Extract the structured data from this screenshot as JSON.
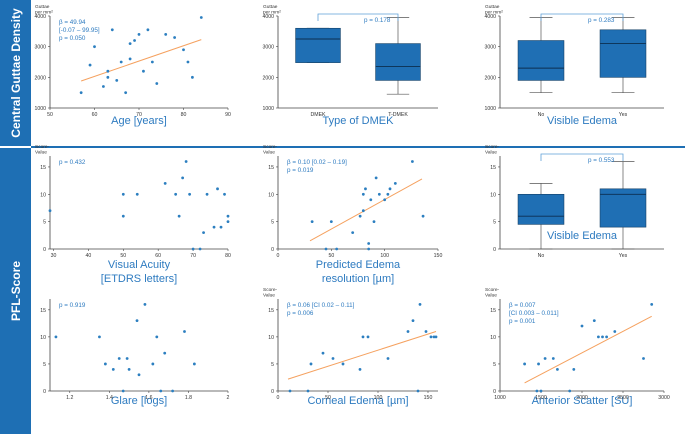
{
  "figure": {
    "row_labels": [
      "Central Guttae Density",
      "PFL-Score"
    ],
    "colors": {
      "accent": "#1e6fb4",
      "points": "#2c7fc0",
      "fit": "#f5a15f",
      "box": "#1f6fb4",
      "axis": "#444444",
      "label": "#2e7bc0"
    }
  },
  "chart_data": [
    {
      "id": "age",
      "type": "scatter",
      "ylabel": "Guttae\nper mm²",
      "xlabel": "Age [years]",
      "xlim": [
        50,
        90
      ],
      "ylim": [
        1000,
        4000
      ],
      "xticks": [
        50,
        60,
        70,
        80,
        90
      ],
      "yticks": [
        1000,
        2000,
        3000,
        4000
      ],
      "annotation": [
        "β = 49.94",
        "[-0.07 – 99.95]",
        "p = 0.050"
      ],
      "points": [
        [
          57,
          1500
        ],
        [
          59,
          2400
        ],
        [
          60,
          3000
        ],
        [
          62,
          1700
        ],
        [
          63,
          2000
        ],
        [
          63,
          2200
        ],
        [
          64,
          3550
        ],
        [
          65,
          1900
        ],
        [
          66,
          2500
        ],
        [
          67,
          1500
        ],
        [
          68,
          3100
        ],
        [
          68,
          2600
        ],
        [
          69,
          3200
        ],
        [
          70,
          3400
        ],
        [
          71,
          2200
        ],
        [
          72,
          3550
        ],
        [
          73,
          2500
        ],
        [
          74,
          1800
        ],
        [
          76,
          3400
        ],
        [
          78,
          3300
        ],
        [
          80,
          2900
        ],
        [
          81,
          2500
        ],
        [
          82,
          2000
        ],
        [
          84,
          3950
        ]
      ],
      "fit": [
        [
          57,
          1880
        ],
        [
          84,
          3230
        ]
      ]
    },
    {
      "id": "dmek",
      "type": "box",
      "ylabel": "Guttae\nper mm²",
      "xlabel": "Type of DMEK",
      "ylim": [
        1000,
        4000
      ],
      "yticks": [
        1000,
        2000,
        3000,
        4000
      ],
      "categories": [
        "DMEK",
        "T-DMEK"
      ],
      "boxes": [
        {
          "min": 2480,
          "q1": 2480,
          "median": 3250,
          "q3": 3600,
          "max": 3600
        },
        {
          "min": 1450,
          "q1": 1900,
          "median": 2350,
          "q3": 3100,
          "max": 3950
        }
      ],
      "p_text": "p = 0.178"
    },
    {
      "id": "edema_gd",
      "type": "box",
      "ylabel": "Guttae\nper mm²",
      "xlabel": "Visible Edema",
      "ylim": [
        1000,
        4000
      ],
      "yticks": [
        1000,
        2000,
        3000,
        4000
      ],
      "categories": [
        "No",
        "Yes"
      ],
      "boxes": [
        {
          "min": 1500,
          "q1": 1900,
          "median": 2300,
          "q3": 3200,
          "max": 3950
        },
        {
          "min": 1500,
          "q1": 2000,
          "median": 3100,
          "q3": 3550,
          "max": 3950
        }
      ],
      "p_text": "p = 0.283"
    },
    {
      "id": "va",
      "type": "scatter",
      "ylabel": "Score-\nValue",
      "xlabel": "Visual Acuity\n[ETDRS letters]",
      "xlim": [
        29,
        80
      ],
      "ylim": [
        0,
        17
      ],
      "xticks": [
        30,
        40,
        50,
        60,
        70,
        80
      ],
      "yticks": [
        0,
        5,
        10,
        15
      ],
      "annotation": [
        "p = 0.432"
      ],
      "points": [
        [
          29,
          7
        ],
        [
          50,
          6
        ],
        [
          50,
          10
        ],
        [
          54,
          10
        ],
        [
          62,
          12
        ],
        [
          65,
          10
        ],
        [
          66,
          6
        ],
        [
          67,
          13
        ],
        [
          68,
          16
        ],
        [
          69,
          10
        ],
        [
          70,
          0
        ],
        [
          72,
          0
        ],
        [
          73,
          3
        ],
        [
          74,
          10
        ],
        [
          76,
          4
        ],
        [
          77,
          11
        ],
        [
          78,
          4
        ],
        [
          79,
          10
        ],
        [
          80,
          6
        ],
        [
          80,
          5
        ]
      ],
      "fit": null
    },
    {
      "id": "edema_res",
      "type": "scatter",
      "ylabel": "Score-\nValue",
      "xlabel": "Predicted Edema\nresolution [µm]",
      "xlim": [
        0,
        150
      ],
      "ylim": [
        0,
        17
      ],
      "xticks": [
        0,
        50,
        100,
        150
      ],
      "yticks": [
        0,
        5,
        10,
        15
      ],
      "annotation": [
        "β = 0.10 [0.02 – 0.19]",
        "p = 0.019"
      ],
      "points": [
        [
          32,
          5
        ],
        [
          45,
          0
        ],
        [
          50,
          5
        ],
        [
          55,
          0
        ],
        [
          70,
          3
        ],
        [
          77,
          6
        ],
        [
          80,
          7
        ],
        [
          80,
          10
        ],
        [
          82,
          11
        ],
        [
          85,
          1
        ],
        [
          85,
          0
        ],
        [
          87,
          9
        ],
        [
          90,
          5
        ],
        [
          92,
          13
        ],
        [
          95,
          10
        ],
        [
          100,
          9
        ],
        [
          103,
          10
        ],
        [
          105,
          11
        ],
        [
          110,
          12
        ],
        [
          126,
          16
        ],
        [
          136,
          6
        ]
      ],
      "fit": [
        [
          30,
          1.5
        ],
        [
          135,
          12.8
        ]
      ]
    },
    {
      "id": "edema_pfl",
      "type": "box",
      "ylabel": "Score-\nValue",
      "xlabel": "Visible Edema",
      "ylim": [
        0,
        17
      ],
      "yticks": [
        0,
        5,
        10,
        15
      ],
      "categories": [
        "No",
        "Yes"
      ],
      "boxes": [
        {
          "min": 0,
          "q1": 4.5,
          "median": 6,
          "q3": 10,
          "max": 12
        },
        {
          "min": 0,
          "q1": 4,
          "median": 10,
          "q3": 11,
          "max": 16
        }
      ],
      "p_text": "p = 0.553"
    },
    {
      "id": "glare",
      "type": "scatter",
      "ylabel": "",
      "xlabel": "Glare [logs]",
      "xlim": [
        1.1,
        2.0
      ],
      "ylim": [
        0,
        17
      ],
      "xticks": [
        1.2,
        1.4,
        1.6,
        1.8,
        2.0
      ],
      "yticks": [
        0,
        5,
        10,
        15
      ],
      "annotation": [
        "p = 0.919"
      ],
      "points": [
        [
          1.13,
          10
        ],
        [
          1.35,
          10
        ],
        [
          1.38,
          5
        ],
        [
          1.42,
          4
        ],
        [
          1.45,
          6
        ],
        [
          1.47,
          0
        ],
        [
          1.49,
          6
        ],
        [
          1.5,
          4
        ],
        [
          1.54,
          13
        ],
        [
          1.55,
          3
        ],
        [
          1.58,
          16
        ],
        [
          1.62,
          5
        ],
        [
          1.64,
          10
        ],
        [
          1.66,
          0
        ],
        [
          1.68,
          7
        ],
        [
          1.72,
          0
        ],
        [
          1.78,
          11
        ],
        [
          1.83,
          5
        ]
      ],
      "fit": null
    },
    {
      "id": "corneal",
      "type": "scatter",
      "ylabel": "Score-\nValue",
      "xlabel": "Corneal Edema [µm]",
      "xlim": [
        0,
        160
      ],
      "ylim": [
        0,
        17
      ],
      "xticks": [
        0,
        50,
        100,
        150
      ],
      "yticks": [
        0,
        5,
        10,
        15
      ],
      "annotation": [
        "β = 0.06 [CI 0.02 – 0.11]",
        "p = 0.006"
      ],
      "points": [
        [
          12,
          0
        ],
        [
          30,
          0
        ],
        [
          33,
          5
        ],
        [
          45,
          7
        ],
        [
          55,
          6
        ],
        [
          65,
          5
        ],
        [
          82,
          4
        ],
        [
          85,
          10
        ],
        [
          90,
          10
        ],
        [
          110,
          6
        ],
        [
          130,
          11
        ],
        [
          135,
          13
        ],
        [
          140,
          0
        ],
        [
          142,
          16
        ],
        [
          148,
          11
        ],
        [
          153,
          10
        ],
        [
          156,
          10
        ],
        [
          158,
          10
        ]
      ],
      "fit": [
        [
          10,
          2.2
        ],
        [
          158,
          11
        ]
      ]
    },
    {
      "id": "scatter_su",
      "type": "scatter",
      "ylabel": "Score-\nValue",
      "xlabel": "Anterior Scatter [SU]",
      "xlim": [
        1000,
        3000
      ],
      "ylim": [
        0,
        17
      ],
      "xticks": [
        1000,
        1500,
        2000,
        2500,
        3000
      ],
      "yticks": [
        0,
        5,
        10,
        15
      ],
      "annotation": [
        "β = 0.007",
        "[CI 0.003 – 0.011]",
        "p = 0.001"
      ],
      "points": [
        [
          1300,
          5
        ],
        [
          1450,
          0
        ],
        [
          1470,
          5
        ],
        [
          1500,
          0
        ],
        [
          1550,
          6
        ],
        [
          1650,
          6
        ],
        [
          1700,
          4
        ],
        [
          1850,
          0
        ],
        [
          1900,
          4
        ],
        [
          2000,
          12
        ],
        [
          2150,
          13
        ],
        [
          2200,
          10
        ],
        [
          2250,
          10
        ],
        [
          2300,
          10
        ],
        [
          2400,
          11
        ],
        [
          2750,
          6
        ],
        [
          2850,
          16
        ]
      ],
      "fit": [
        [
          1300,
          1.5
        ],
        [
          2850,
          13.8
        ]
      ]
    }
  ]
}
